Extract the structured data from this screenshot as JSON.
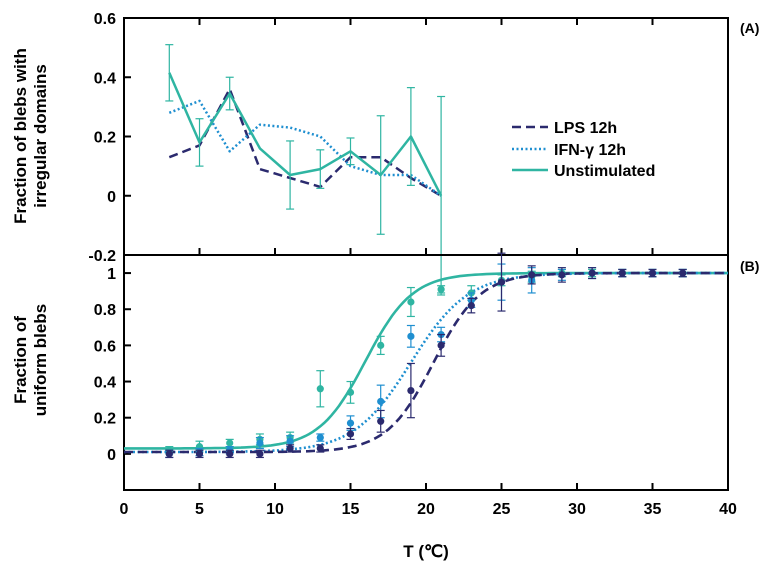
{
  "colors": {
    "lps": "#2b2a6e",
    "ifn": "#1f8fd0",
    "unstim": "#2fb5a2",
    "axis": "#000000"
  },
  "chart_data": [
    {
      "panel": "(A)",
      "type": "line",
      "ylabel": [
        "Fraction of blebs with",
        "irregular domains"
      ],
      "xlim": [
        0,
        40
      ],
      "ylim": [
        -0.2,
        0.6
      ],
      "yticks": [
        -0.2,
        0,
        0.2,
        0.4,
        0.6
      ],
      "ytick_labels": [
        "-0.2",
        "0",
        "0.2",
        "0.4",
        "0.6"
      ],
      "legend": {
        "position": "center-right",
        "entries": [
          "LPS 12h",
          "IFN-γ 12h",
          "Unstimulated"
        ]
      },
      "series": [
        {
          "name": "LPS 12h",
          "style": "dashed",
          "x": [
            3,
            5,
            7,
            9,
            11,
            13,
            15,
            17,
            19,
            21
          ],
          "y": [
            0.13,
            0.17,
            0.36,
            0.09,
            0.06,
            0.03,
            0.13,
            0.13,
            0.06,
            0.0
          ]
        },
        {
          "name": "IFN-γ 12h",
          "style": "dotted",
          "x": [
            3,
            5,
            7,
            9,
            11,
            13,
            15,
            17,
            19,
            21
          ],
          "y": [
            0.28,
            0.32,
            0.15,
            0.24,
            0.23,
            0.2,
            0.1,
            0.07,
            0.07,
            0.0
          ]
        },
        {
          "name": "Unstimulated",
          "style": "solid",
          "x": [
            3,
            5,
            7,
            9,
            11,
            13,
            15,
            17,
            19,
            21
          ],
          "y": [
            0.415,
            0.18,
            0.345,
            0.16,
            0.07,
            0.09,
            0.15,
            0.07,
            0.2,
            0.0
          ],
          "err": [
            0.095,
            0.08,
            0.055,
            0.0,
            0.115,
            0.065,
            0.045,
            0.2,
            0.165,
            0.335
          ]
        }
      ]
    },
    {
      "panel": "(B)",
      "type": "scatter",
      "xlabel": "T (℃)",
      "ylabel": [
        "Fraction of",
        "uniform blebs"
      ],
      "xlim": [
        0,
        40
      ],
      "ylim": [
        -0.2,
        1.1
      ],
      "xticks": [
        0,
        5,
        10,
        15,
        20,
        25,
        30,
        35,
        40
      ],
      "xtick_labels": [
        "0",
        "5",
        "10",
        "15",
        "20",
        "25",
        "30",
        "35",
        "40"
      ],
      "yticks": [
        0,
        0.2,
        0.4,
        0.6,
        0.8,
        1
      ],
      "ytick_labels": [
        "0",
        "0.2",
        "0.4",
        "0.6",
        "0.8",
        "1"
      ],
      "series": [
        {
          "name": "Unstimulated",
          "fit": {
            "style": "solid",
            "tm": 16.0,
            "k": 1.55,
            "base": 0.03,
            "top": 1.0
          },
          "x": [
            3,
            5,
            7,
            9,
            11,
            13,
            15,
            17,
            19,
            21,
            23,
            25,
            27,
            29,
            31,
            33,
            35,
            37
          ],
          "y": [
            0.02,
            0.04,
            0.06,
            0.08,
            0.09,
            0.36,
            0.34,
            0.6,
            0.84,
            0.91,
            0.89,
            0.96,
            0.98,
            1.0,
            1.0,
            1.0,
            1.0,
            1.0
          ],
          "err": [
            0.02,
            0.03,
            0.02,
            0.03,
            0.03,
            0.1,
            0.06,
            0.05,
            0.08,
            0.02,
            0.04,
            0.03,
            0.03,
            0.02,
            0.02,
            0.02,
            0.02,
            0.02
          ]
        },
        {
          "name": "IFN-γ 12h",
          "fit": {
            "style": "dotted",
            "tm": 19.0,
            "k": 1.9,
            "base": 0.01,
            "top": 1.0
          },
          "x": [
            3,
            5,
            7,
            9,
            11,
            13,
            15,
            17,
            19,
            21,
            23,
            25,
            27,
            29,
            31,
            33,
            35,
            37
          ],
          "y": [
            0.0,
            0.01,
            0.02,
            0.06,
            0.07,
            0.09,
            0.17,
            0.29,
            0.65,
            0.66,
            0.85,
            0.95,
            0.96,
            0.99,
            1.0,
            1.0,
            1.0,
            1.0
          ],
          "err": [
            0.02,
            0.02,
            0.02,
            0.03,
            0.03,
            0.02,
            0.04,
            0.09,
            0.06,
            0.04,
            0.04,
            0.1,
            0.07,
            0.03,
            0.03,
            0.02,
            0.02,
            0.02
          ]
        },
        {
          "name": "LPS 12h",
          "fit": {
            "style": "dashed",
            "tm": 20.5,
            "k": 1.55,
            "base": 0.01,
            "top": 1.0
          },
          "x": [
            3,
            5,
            7,
            9,
            11,
            13,
            15,
            17,
            19,
            21,
            23,
            25,
            27,
            29,
            31,
            33,
            35,
            37
          ],
          "y": [
            0.0,
            0.0,
            0.0,
            0.0,
            0.03,
            0.03,
            0.11,
            0.18,
            0.35,
            0.6,
            0.82,
            0.95,
            0.99,
            0.99,
            1.0,
            1.0,
            1.0,
            1.0
          ],
          "err": [
            0.02,
            0.02,
            0.02,
            0.02,
            0.02,
            0.02,
            0.03,
            0.06,
            0.15,
            0.06,
            0.04,
            0.16,
            0.05,
            0.04,
            0.03,
            0.02,
            0.02,
            0.02
          ]
        }
      ]
    }
  ]
}
